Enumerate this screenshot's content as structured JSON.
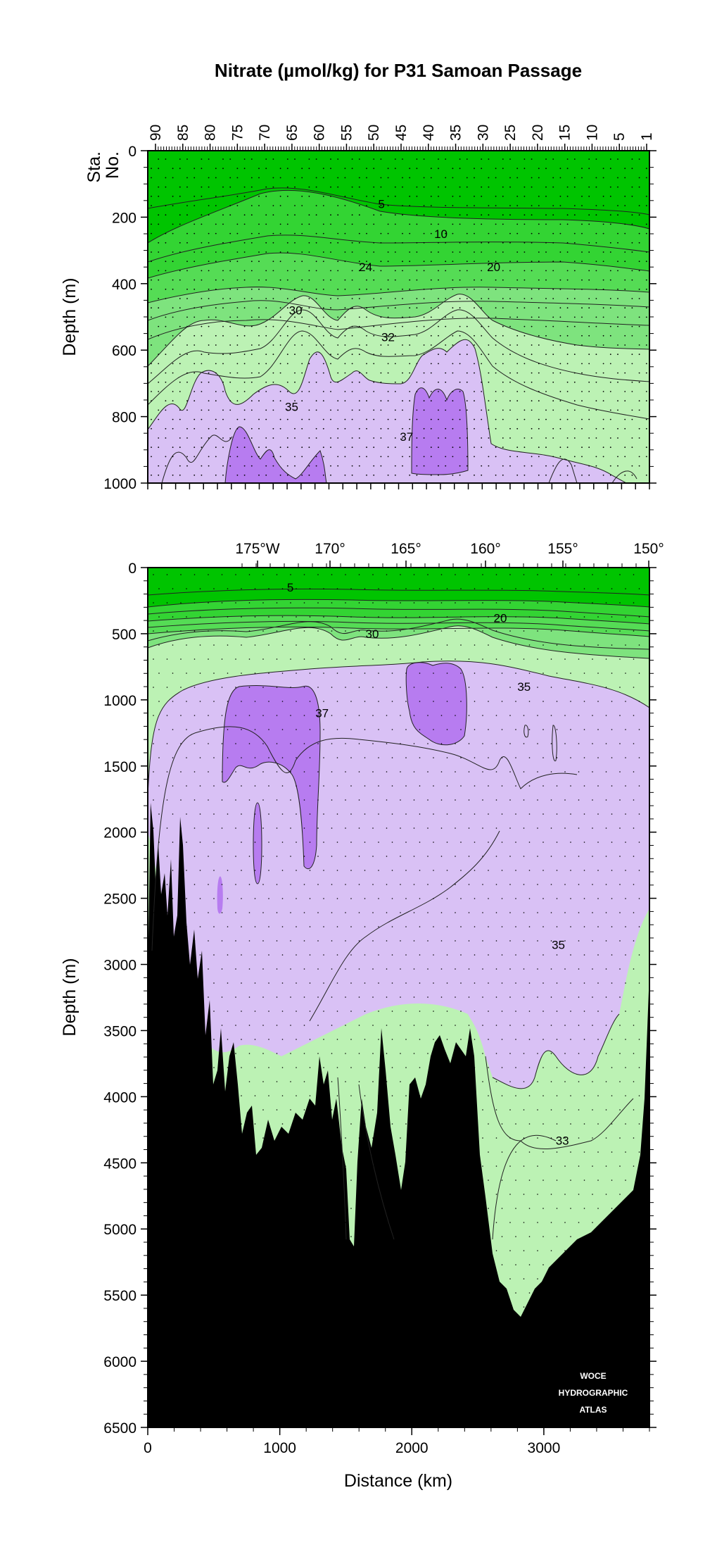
{
  "figure": {
    "title": "Nitrate (µmol/kg) for P31 Samoan Passage",
    "watermark": [
      "WOCE",
      "HYDROGRAPHIC",
      "ATLAS"
    ]
  },
  "colors": {
    "band_0_10": "#00c400",
    "band_10_20": "#33d433",
    "band_20_24": "#55dc55",
    "band_24_30": "#7ee37e",
    "band_30_35": "#bcf2b4",
    "band_35_37": "#d9c1f5",
    "band_37_plus": "#b77cf0",
    "bottom": "#000000",
    "contour": "#222222"
  },
  "chart_data": [
    {
      "type": "heatmap",
      "panel": "upper",
      "ylabel": "Depth (m)",
      "ylim": [
        0,
        1000
      ],
      "yticks": [
        "0",
        "200",
        "400",
        "600",
        "800",
        "1000"
      ],
      "top_axis_label": [
        "Sta.",
        "No."
      ],
      "station_ticks": [
        "90",
        "85",
        "80",
        "75",
        "70",
        "65",
        "60",
        "55",
        "50",
        "45",
        "40",
        "35",
        "30",
        "25",
        "20",
        "15",
        "10",
        "5",
        "1"
      ],
      "xlim_km": [
        0,
        3800
      ],
      "contour_labels": [
        {
          "text": "5",
          "x_km": 1770,
          "depth": 160
        },
        {
          "text": "10",
          "x_km": 2220,
          "depth": 250
        },
        {
          "text": "24",
          "x_km": 1650,
          "depth": 350
        },
        {
          "text": "20",
          "x_km": 2620,
          "depth": 350
        },
        {
          "text": "30",
          "x_km": 1120,
          "depth": 480
        },
        {
          "text": "32",
          "x_km": 1820,
          "depth": 560
        },
        {
          "text": "35",
          "x_km": 1090,
          "depth": 770
        },
        {
          "text": "37",
          "x_km": 1960,
          "depth": 860
        }
      ]
    },
    {
      "type": "heatmap",
      "panel": "lower",
      "ylabel": "Depth (m)",
      "xlabel": "Distance (km)",
      "ylim": [
        0,
        6500
      ],
      "yticks": [
        "0",
        "500",
        "1000",
        "1500",
        "2000",
        "2500",
        "3000",
        "3500",
        "4000",
        "4500",
        "5000",
        "5500",
        "6000",
        "6500"
      ],
      "xlim_km": [
        0,
        3800
      ],
      "xticks": [
        "0",
        "1000",
        "2000",
        "3000"
      ],
      "longitude_ticks": [
        "175°W",
        "170°",
        "165°",
        "160°",
        "155°",
        "150°"
      ],
      "contour_labels": [
        {
          "text": "5",
          "x_km": 1080,
          "depth": 150
        },
        {
          "text": "20",
          "x_km": 2670,
          "depth": 380
        },
        {
          "text": "30",
          "x_km": 1700,
          "depth": 500
        },
        {
          "text": "35",
          "x_km": 2850,
          "depth": 900
        },
        {
          "text": "37",
          "x_km": 1320,
          "depth": 1100
        },
        {
          "text": "35",
          "x_km": 3110,
          "depth": 2850
        },
        {
          "text": "33",
          "x_km": 3140,
          "depth": 4330
        }
      ]
    }
  ]
}
